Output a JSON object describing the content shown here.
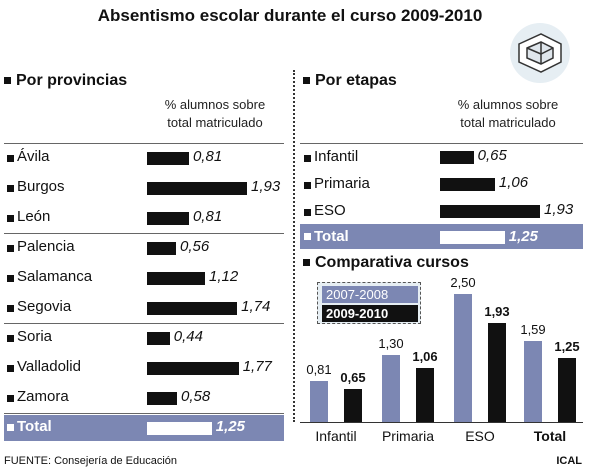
{
  "title": "Absentismo escolar durante el curso 2009-2010",
  "colors": {
    "accent": "#7c87b3",
    "bar": "#111111",
    "legend_bg": "#e6eef3"
  },
  "provincias": {
    "heading": "Por provincias",
    "subtitle_line1": "% alumnos sobre",
    "subtitle_line2": "total matriculado",
    "rows": [
      {
        "label": "Ávila",
        "value": 0.81,
        "display": "0,81"
      },
      {
        "label": "Burgos",
        "value": 1.93,
        "display": "1,93"
      },
      {
        "label": "León",
        "value": 0.81,
        "display": "0,81"
      },
      {
        "label": "Palencia",
        "value": 0.56,
        "display": "0,56"
      },
      {
        "label": "Salamanca",
        "value": 1.12,
        "display": "1,12"
      },
      {
        "label": "Segovia",
        "value": 1.74,
        "display": "1,74"
      },
      {
        "label": "Soria",
        "value": 0.44,
        "display": "0,44"
      },
      {
        "label": "Valladolid",
        "value": 1.77,
        "display": "1,77"
      },
      {
        "label": "Zamora",
        "value": 0.58,
        "display": "0,58"
      }
    ],
    "total": {
      "label": "Total",
      "value": 1.25,
      "display": "1,25"
    }
  },
  "etapas": {
    "heading": "Por etapas",
    "subtitle_line1": "% alumnos sobre",
    "subtitle_line2": "total matriculado",
    "rows": [
      {
        "label": "Infantil",
        "value": 0.65,
        "display": "0,65"
      },
      {
        "label": "Primaria",
        "value": 1.06,
        "display": "1,06"
      },
      {
        "label": "ESO",
        "value": 1.93,
        "display": "1,93"
      }
    ],
    "total": {
      "label": "Total",
      "value": 1.25,
      "display": "1,25"
    }
  },
  "comparativa": {
    "heading": "Comparativa cursos",
    "legend": [
      {
        "name": "2007-2008",
        "color": "#7c87b3"
      },
      {
        "name": "2009-2010",
        "color": "#111111"
      }
    ]
  },
  "chart_data": [
    {
      "type": "bar",
      "title": "Por provincias",
      "ylabel": "% alumnos sobre total matriculado",
      "categories": [
        "Ávila",
        "Burgos",
        "León",
        "Palencia",
        "Salamanca",
        "Segovia",
        "Soria",
        "Valladolid",
        "Zamora",
        "Total"
      ],
      "values": [
        0.81,
        1.93,
        0.81,
        0.56,
        1.12,
        1.74,
        0.44,
        1.77,
        0.58,
        1.25
      ]
    },
    {
      "type": "bar",
      "title": "Por etapas",
      "ylabel": "% alumnos sobre total matriculado",
      "categories": [
        "Infantil",
        "Primaria",
        "ESO",
        "Total"
      ],
      "values": [
        0.65,
        1.06,
        1.93,
        1.25
      ]
    },
    {
      "type": "bar",
      "title": "Comparativa cursos",
      "categories": [
        "Infantil",
        "Primaria",
        "ESO",
        "Total"
      ],
      "series": [
        {
          "name": "2007-2008",
          "values": [
            0.81,
            1.3,
            2.5,
            1.59
          ],
          "display": [
            "0,81",
            "1,30",
            "2,50",
            "1,59"
          ]
        },
        {
          "name": "2009-2010",
          "values": [
            0.65,
            1.06,
            1.93,
            1.25
          ],
          "display": [
            "0,65",
            "1,06",
            "1,93",
            "1,25"
          ]
        }
      ],
      "legend": "top-left"
    }
  ],
  "footer": "FUENTE: Consejería de Educación",
  "credit": "ICAL"
}
